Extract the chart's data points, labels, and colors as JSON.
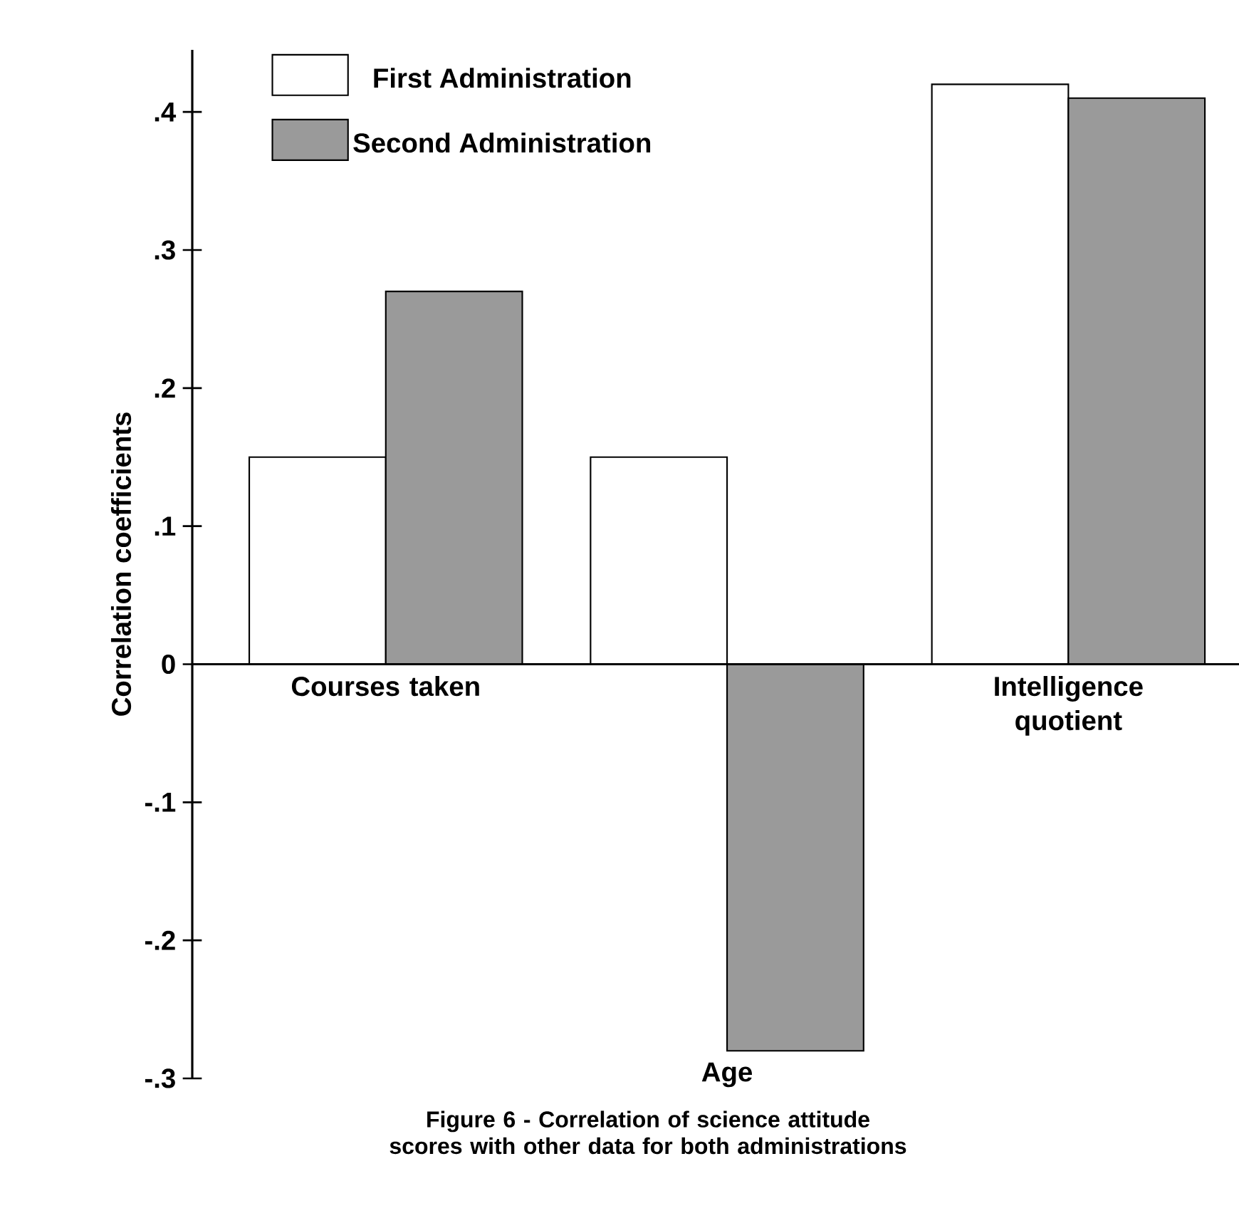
{
  "chart_data": {
    "type": "bar",
    "title": "Figure 6 - Correlation of science attitude scores with other data for both administrations",
    "ylabel": "Correlation coefficients",
    "categories": [
      "Courses taken",
      "Age",
      "Intelligence quotient"
    ],
    "series": [
      {
        "name": "First Administration",
        "color": "#ffffff",
        "values": [
          0.15,
          0.15,
          0.42
        ]
      },
      {
        "name": "Second Administration",
        "color": "#9a9a9a",
        "values": [
          0.27,
          -0.28,
          0.41
        ]
      }
    ],
    "ylim": [
      -0.3,
      0.445
    ],
    "yticks": [
      {
        "value": -0.3,
        "label": "-.3"
      },
      {
        "value": -0.2,
        "label": "-.2"
      },
      {
        "value": -0.1,
        "label": "-.1"
      },
      0,
      {
        "value": 0.1,
        "label": ".1"
      },
      {
        "value": 0.2,
        "label": ".2"
      },
      {
        "value": 0.3,
        "label": ".3"
      },
      {
        "value": 0.4,
        "label": ".4"
      }
    ],
    "legend": "top left",
    "grid": false
  }
}
